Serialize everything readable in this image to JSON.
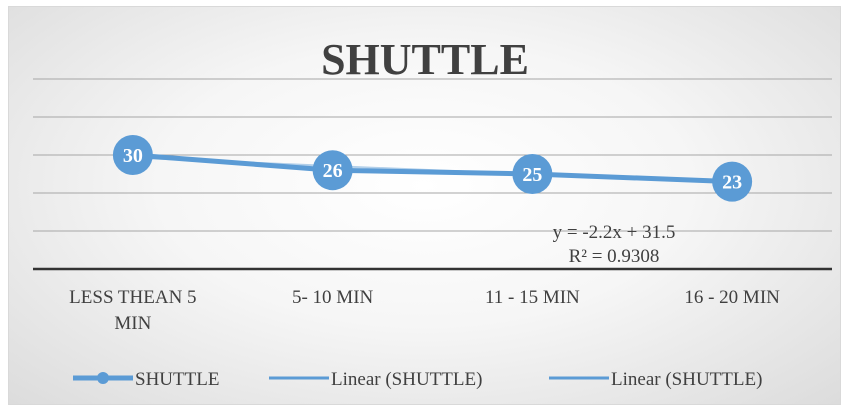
{
  "chart_data": {
    "type": "line",
    "title": "SHUTTLE",
    "categories": [
      "LESS THEAN 5 MIN",
      "5- 10 MIN",
      "11 - 15 MIN",
      "16 - 20 MIN"
    ],
    "series": [
      {
        "name": "SHUTTLE",
        "values": [
          30,
          26,
          25,
          23
        ],
        "color": "#5b9bd5"
      }
    ],
    "trendline": {
      "equation": "y = -2.2x + 31.5",
      "r_squared": "R² = 0.9308",
      "slope": -2.2,
      "intercept": 31.5
    },
    "legend": {
      "position": "bottom",
      "entries": [
        "SHUTTLE",
        "Linear (SHUTTLE)",
        "Linear (SHUTTLE)"
      ]
    },
    "grid": true,
    "ylim": [
      0,
      50
    ]
  }
}
